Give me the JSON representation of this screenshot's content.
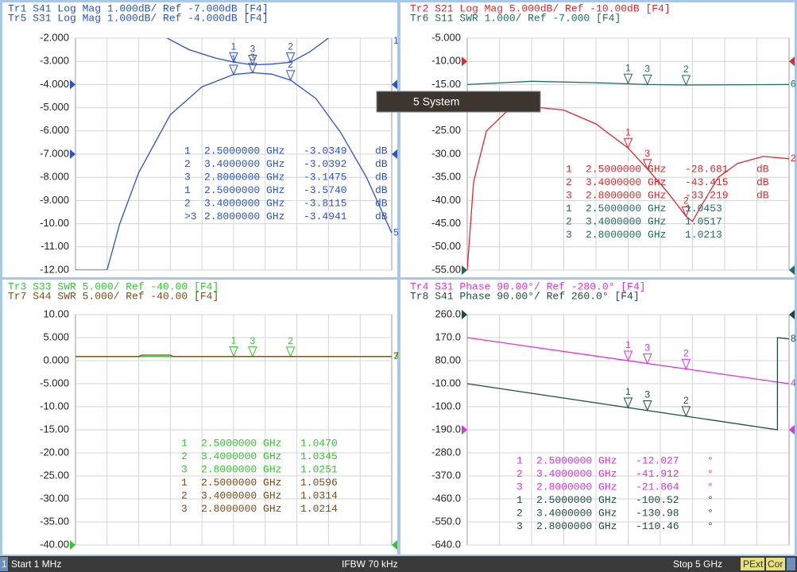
{
  "chart_data": [
    {
      "type": "line",
      "xlim": [
        0.001,
        5
      ],
      "ylim": [
        -12,
        -2
      ],
      "yticks": [
        {
          "value": -2,
          "label": "-2.000"
        },
        {
          "value": -3,
          "label": "-3.000"
        },
        {
          "value": -4,
          "label": "-4.000"
        },
        {
          "value": -5,
          "label": "-5.000"
        },
        {
          "value": -6,
          "label": "-6.000"
        },
        {
          "value": -7,
          "label": "-7.000"
        },
        {
          "value": -8,
          "label": "-8.000"
        },
        {
          "value": -9,
          "label": "-9.000"
        },
        {
          "value": -10,
          "label": "-10.00"
        },
        {
          "value": -11,
          "label": "-11.00"
        },
        {
          "value": -12,
          "label": "-12.00"
        }
      ],
      "series": [
        {
          "name": "Tr1 S41 Log Mag 1.000dB/ Ref -7.000dB [F4]",
          "color": "#2a52d0",
          "trace_label": "1",
          "ref_position": -7,
          "x": [
            1.45,
            1.8,
            2.2,
            2.5,
            2.8,
            3.1,
            3.4,
            3.7,
            4.0
          ],
          "values": [
            -2.0,
            -2.5,
            -2.85,
            -3.03,
            -3.15,
            -3.12,
            -3.04,
            -2.6,
            -2.0
          ],
          "markers": {
            "x": [
              2.5,
              3.4,
              2.8
            ],
            "y": [
              -3.0349,
              -3.0392,
              -3.1475
            ],
            "labels": [
              "1",
              "2",
              "3"
            ]
          },
          "marker_table": [
            [
              "1",
              "2.5000000 GHz",
              "-3.0349",
              "dB"
            ],
            [
              "2",
              "3.4000000 GHz",
              "-3.0392",
              "dB"
            ],
            [
              "3",
              "2.8000000 GHz",
              "-3.1475",
              "dB"
            ]
          ]
        },
        {
          "name": "Tr5 S31 Log Mag 1.000dB/ Ref -4.000dB [F4]",
          "color": "#2a52d0",
          "trace_label": "5",
          "ref_position": -4,
          "x": [
            0.001,
            0.5,
            0.7,
            1.0,
            1.5,
            2.0,
            2.5,
            2.8,
            3.1,
            3.4,
            3.8,
            4.2,
            4.6,
            5.0
          ],
          "values": [
            -12,
            -12,
            -10,
            -7.8,
            -5.3,
            -4.1,
            -3.57,
            -3.49,
            -3.55,
            -3.81,
            -4.6,
            -6.1,
            -8.0,
            -10.4
          ],
          "markers": {
            "x": [
              2.5,
              3.4,
              2.8
            ],
            "y": [
              -3.574,
              -3.8115,
              -3.4941
            ],
            "labels": [
              "1",
              "2",
              "3"
            ]
          },
          "marker_table": [
            [
              "1",
              "2.5000000 GHz",
              "-3.5740",
              "dB"
            ],
            [
              "2",
              "3.4000000 GHz",
              "-3.8115",
              "dB"
            ],
            [
              ">3",
              "2.8000000 GHz",
              "-3.4941",
              "dB"
            ]
          ]
        }
      ]
    },
    {
      "type": "line",
      "xlim": [
        0.001,
        5
      ],
      "ylim": [
        -55,
        -5
      ],
      "yticks": [
        {
          "value": -5,
          "label": "-5.000"
        },
        {
          "value": -10,
          "label": "-10.00"
        },
        {
          "value": -15,
          "label": "-15.00"
        },
        {
          "value": -20,
          "label": "-20.00"
        },
        {
          "value": -25,
          "label": "-25.00"
        },
        {
          "value": -30,
          "label": "-30.00"
        },
        {
          "value": -35,
          "label": "-35.00"
        },
        {
          "value": -40,
          "label": "-40.00"
        },
        {
          "value": -45,
          "label": "-45.00"
        },
        {
          "value": -50,
          "label": "-50.00"
        },
        {
          "value": -55,
          "label": "-55.00"
        }
      ],
      "series": [
        {
          "name": "Tr2 S21 Log Mag 5.000dB/ Ref -10.00dB [F4]",
          "color": "#e3262a",
          "trace_label": "2",
          "ref_position": -10,
          "x": [
            0.001,
            0.1,
            0.3,
            0.6,
            1.0,
            1.5,
            2.0,
            2.5,
            2.8,
            3.1,
            3.4,
            3.5,
            3.6,
            3.9,
            4.2,
            4.6,
            5.0
          ],
          "values": [
            -55,
            -36,
            -25,
            -21,
            -19.8,
            -20.5,
            -23.5,
            -28.7,
            -33.2,
            -38,
            -43.4,
            -44.5,
            -42,
            -35,
            -32,
            -30.5,
            -31
          ],
          "markers": {
            "x": [
              2.5,
              3.4,
              2.8
            ],
            "y": [
              -28.681,
              -43.415,
              -33.219
            ],
            "labels": [
              "1",
              "2",
              "3"
            ]
          },
          "marker_table": [
            [
              "1",
              "2.5000000 GHz",
              "-28.681",
              "dB"
            ],
            [
              "2",
              "3.4000000 GHz",
              "-43.415",
              "dB"
            ],
            [
              "3",
              "2.8000000 GHz",
              "-33.219",
              "dB"
            ]
          ]
        },
        {
          "name": "Tr6 S11 SWR 1.000/ Ref -7.000 [F4]",
          "color": "#1d6b62",
          "trace_label": "6",
          "ref_position": -55,
          "x": [
            0.001,
            1.0,
            2.0,
            2.8,
            3.4,
            5.0
          ],
          "values": [
            -15,
            -14.3,
            -14.6,
            -15,
            -15.1,
            -15
          ],
          "markers": {
            "x": [
              2.5,
              3.4,
              2.8
            ],
            "y": [
              -14.8,
              -15.1,
              -15
            ],
            "labels": [
              "1",
              "2",
              "3"
            ]
          },
          "marker_table": [
            [
              "1",
              "2.5000000 GHz",
              "1.0453"
            ],
            [
              "2",
              "3.4000000 GHz",
              "1.0517"
            ],
            [
              "3",
              "2.8000000 GHz",
              "1.0213"
            ]
          ]
        }
      ]
    },
    {
      "type": "line",
      "xlim": [
        0.001,
        5
      ],
      "ylim": [
        -40,
        10
      ],
      "yticks": [
        {
          "value": 10,
          "label": "10.00"
        },
        {
          "value": 5,
          "label": "5.000"
        },
        {
          "value": 0,
          "label": "0.000"
        },
        {
          "value": -5,
          "label": "-5.000"
        },
        {
          "value": -10,
          "label": "-10.00"
        },
        {
          "value": -15,
          "label": "-15.00"
        },
        {
          "value": -20,
          "label": "-20.00"
        },
        {
          "value": -25,
          "label": "-25.00"
        },
        {
          "value": -30,
          "label": "-30.00"
        },
        {
          "value": -35,
          "label": "-35.00"
        },
        {
          "value": -40,
          "label": "-40.00"
        }
      ],
      "series": [
        {
          "name": "Tr3 S33 SWR 5.000/ Ref -40.00 [F4]",
          "color": "#2ec82e",
          "trace_label": "3",
          "ref_position": -40,
          "x": [
            0.001,
            5
          ],
          "values": [
            0.9,
            0.9
          ],
          "markers": {
            "x": [
              2.5,
              3.4,
              2.8
            ],
            "y": [
              0.95,
              0.88,
              0.92
            ],
            "labels": [
              "1",
              "2",
              "3"
            ]
          },
          "marker_table": [
            [
              "1",
              "2.5000000 GHz",
              "1.0470"
            ],
            [
              "2",
              "3.4000000 GHz",
              "1.0345"
            ],
            [
              "3",
              "2.8000000 GHz",
              "1.0251"
            ]
          ]
        },
        {
          "name": "Tr7 S44 SWR 5.000/ Ref -40.00 [F4]",
          "color": "#7a4b16",
          "trace_label": "7",
          "x": [
            0.001,
            1.0,
            1.05,
            1.5,
            1.55,
            5
          ],
          "values": [
            0.9,
            0.9,
            1.2,
            1.2,
            0.9,
            0.9
          ],
          "marker_table": [
            [
              "1",
              "2.5000000 GHz",
              "1.0596"
            ],
            [
              "2",
              "3.4000000 GHz",
              "1.0314"
            ],
            [
              "3",
              "2.8000000 GHz",
              "1.0214"
            ]
          ]
        }
      ]
    },
    {
      "type": "line",
      "xlim": [
        0.001,
        5
      ],
      "ylim": [
        -640,
        260
      ],
      "yticks": [
        {
          "value": 260,
          "label": "260.0"
        },
        {
          "value": 170,
          "label": "170.0"
        },
        {
          "value": 80,
          "label": "80.00"
        },
        {
          "value": -10,
          "label": "-10.00"
        },
        {
          "value": -100,
          "label": "-100.0"
        },
        {
          "value": -190,
          "label": "-190.0"
        },
        {
          "value": -280,
          "label": "-280.0"
        },
        {
          "value": -370,
          "label": "-370.0"
        },
        {
          "value": -460,
          "label": "-460.0"
        },
        {
          "value": -550,
          "label": "-550.0"
        },
        {
          "value": -640,
          "label": "-640.0"
        }
      ],
      "series": [
        {
          "name": "Tr4 S31 Phase 90.00°/ Ref -280.0° [F4]",
          "color": "#e030e0",
          "trace_label": "4",
          "ref_position": -190,
          "x": [
            0.001,
            5
          ],
          "values": [
            170,
            -10
          ],
          "markers": {
            "x": [
              2.5,
              3.4,
              2.8
            ],
            "y": [
              80,
              48,
              69
            ],
            "labels": [
              "1",
              "2",
              "3"
            ]
          },
          "marker_table": [
            [
              "1",
              "2.5000000 GHz",
              "-12.027",
              "°"
            ],
            [
              "2",
              "3.4000000 GHz",
              "-41.912",
              "°"
            ],
            [
              "3",
              "2.8000000 GHz",
              "-21.864",
              "°"
            ]
          ]
        },
        {
          "name": "Tr8 S41 Phase 90.00°/ Ref 260.0° [F4]",
          "color": "#1e4a44",
          "trace_label": "8",
          "ref_position": 260,
          "x": [
            0.001,
            4.82,
            4.82,
            5.0
          ],
          "values": [
            -10,
            -190,
            170,
            165
          ],
          "markers": {
            "x": [
              2.5,
              3.4,
              2.8
            ],
            "y": [
              -103,
              -137,
              -114
            ],
            "labels": [
              "1",
              "2",
              "3"
            ]
          },
          "marker_table": [
            [
              "1",
              "2.5000000 GHz",
              "-100.52",
              "°"
            ],
            [
              "2",
              "3.4000000 GHz",
              "-130.98",
              "°"
            ],
            [
              "3",
              "2.8000000 GHz",
              "-110.46",
              "°"
            ]
          ]
        }
      ]
    }
  ],
  "tooltip": "5 System",
  "status_bar": {
    "channel": "1",
    "start": "Start 1 MHz",
    "ifbw": "IFBW 70 kHz",
    "stop": "Stop 5 GHz",
    "pext": "PExt",
    "cor": "Cor"
  }
}
